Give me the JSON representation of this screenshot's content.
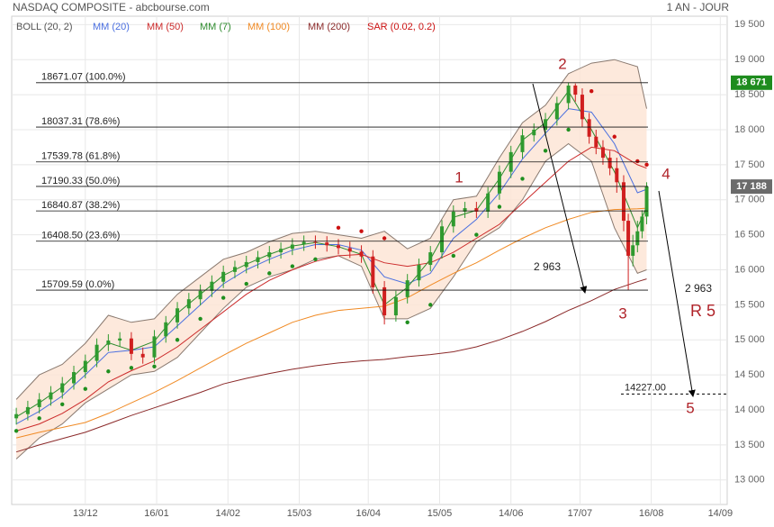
{
  "header": {
    "title": "NASDAQ COMPOSITE - abcbourse.com",
    "period": "1 AN - JOUR"
  },
  "chart_data": {
    "type": "candlestick",
    "x": [
      0,
      5,
      10,
      15,
      20,
      25,
      30,
      35,
      40,
      45,
      50,
      55,
      60,
      65,
      70,
      75,
      80,
      85,
      90,
      95,
      100,
      105,
      110,
      115,
      120,
      125,
      130,
      135,
      140,
      145,
      150,
      155,
      160,
      165,
      170,
      175,
      180,
      185,
      190,
      195,
      200,
      205,
      210,
      215,
      220,
      225,
      230,
      235,
      240,
      243,
      246,
      249,
      252,
      255,
      258,
      261,
      264,
      266,
      268,
      270,
      272,
      274
    ],
    "open": [
      13880,
      13940,
      14040,
      14150,
      14250,
      14380,
      14540,
      14700,
      14930,
      14990,
      15020,
      14800,
      14750,
      15050,
      15250,
      15450,
      15580,
      15700,
      15830,
      15970,
      16040,
      16110,
      16180,
      16250,
      16300,
      16360,
      16400,
      16390,
      16350,
      16310,
      16260,
      16190,
      15750,
      15350,
      15610,
      15850,
      16070,
      16250,
      16620,
      16830,
      16880,
      16830,
      17090,
      17400,
      17680,
      17920,
      18000,
      18150,
      18380,
      18630,
      18500,
      18150,
      17900,
      17750,
      17600,
      17450,
      17250,
      16700,
      16200,
      16350,
      16550,
      16760
    ],
    "high": [
      14030,
      14130,
      14240,
      14340,
      14470,
      14630,
      14790,
      15020,
      15080,
      15110,
      15110,
      14890,
      15140,
      15340,
      15540,
      15670,
      15790,
      15920,
      16060,
      16130,
      16200,
      16270,
      16340,
      16390,
      16450,
      16490,
      16490,
      16480,
      16440,
      16400,
      16350,
      16280,
      15840,
      15700,
      15940,
      16160,
      16340,
      16710,
      16920,
      16970,
      16970,
      17180,
      17490,
      17770,
      18010,
      18090,
      18240,
      18470,
      18671,
      18660,
      18590,
      18240,
      18000,
      17850,
      17700,
      17600,
      17350,
      16800,
      16500,
      16700,
      16850,
      17250
    ],
    "low": [
      13790,
      13850,
      13950,
      14060,
      14160,
      14290,
      14450,
      14610,
      14840,
      14900,
      14710,
      14660,
      14660,
      14960,
      15160,
      15360,
      15490,
      15610,
      15740,
      15880,
      15950,
      16020,
      16090,
      16160,
      16210,
      16270,
      16300,
      16260,
      16220,
      16170,
      16100,
      15660,
      15220,
      15260,
      15520,
      15760,
      15980,
      16160,
      16530,
      16740,
      16740,
      16740,
      17000,
      17310,
      17590,
      17830,
      17910,
      18060,
      18290,
      18400,
      18040,
      17800,
      17650,
      17500,
      17350,
      17100,
      16550,
      15710,
      16050,
      16250,
      16450,
      16650
    ],
    "close": [
      13940,
      14040,
      14150,
      14250,
      14380,
      14540,
      14700,
      14930,
      14990,
      15020,
      14800,
      14750,
      15050,
      15250,
      15450,
      15580,
      15700,
      15830,
      15970,
      16040,
      16110,
      16180,
      16250,
      16300,
      16360,
      16400,
      16390,
      16350,
      16310,
      16260,
      16190,
      15750,
      15350,
      15610,
      15850,
      16070,
      16250,
      16620,
      16830,
      16880,
      16830,
      17090,
      17400,
      17680,
      17920,
      18000,
      18150,
      18380,
      18630,
      18500,
      18150,
      17900,
      17750,
      17600,
      17450,
      17250,
      16700,
      16200,
      16350,
      16550,
      16760,
      17190
    ],
    "up_color": "#2f9a2f",
    "down_color": "#d01f1f",
    "xlim": [
      -2,
      309
    ],
    "xticks": [
      {
        "value": 30,
        "label": "13/12"
      },
      {
        "value": 61,
        "label": "16/01"
      },
      {
        "value": 92,
        "label": "14/02"
      },
      {
        "value": 123,
        "label": "15/03"
      },
      {
        "value": 153,
        "label": "16/04"
      },
      {
        "value": 184,
        "label": "15/05"
      },
      {
        "value": 215,
        "label": "14/06"
      },
      {
        "value": 245,
        "label": "17/07"
      },
      {
        "value": 276,
        "label": "16/08"
      },
      {
        "value": 306,
        "label": "14/09"
      }
    ],
    "ylim": [
      12650,
      19620
    ],
    "yticks": [
      {
        "value": 13000,
        "label": "13 000"
      },
      {
        "value": 13500,
        "label": "13 500"
      },
      {
        "value": 14000,
        "label": "14 000"
      },
      {
        "value": 14500,
        "label": "14 500"
      },
      {
        "value": 15000,
        "label": "15 000"
      },
      {
        "value": 15500,
        "label": "15 500"
      },
      {
        "value": 16000,
        "label": "16 000"
      },
      {
        "value": 16500,
        "label": "16 500"
      },
      {
        "value": 17000,
        "label": "17 000"
      },
      {
        "value": 17500,
        "label": "17 500"
      },
      {
        "value": 18000,
        "label": "18 000"
      },
      {
        "value": 18500,
        "label": "18 500"
      },
      {
        "value": 19000,
        "label": "19 000"
      },
      {
        "value": 19500,
        "label": "19 500"
      }
    ],
    "grid": true,
    "indicators": {
      "x": [
        0,
        10,
        20,
        30,
        40,
        50,
        60,
        70,
        80,
        90,
        100,
        110,
        120,
        130,
        140,
        150,
        160,
        170,
        180,
        190,
        200,
        210,
        220,
        230,
        240,
        250,
        260,
        270,
        274
      ],
      "series": [
        {
          "name": "BOLL (20, 2)",
          "color": "#555555",
          "line_color": "#8a7a70",
          "fill": "#fde3d3",
          "upper": [
            14150,
            14500,
            14650,
            14950,
            15350,
            15250,
            15300,
            15650,
            15900,
            16150,
            16250,
            16400,
            16520,
            16550,
            16500,
            16450,
            16550,
            16300,
            16450,
            17000,
            17050,
            17600,
            18100,
            18350,
            18800,
            18950,
            19000,
            18900,
            18300
          ],
          "lower": [
            13300,
            13600,
            13800,
            14100,
            14300,
            14500,
            14550,
            14750,
            15100,
            15450,
            15750,
            15900,
            16000,
            16150,
            16200,
            16050,
            15300,
            15300,
            15450,
            15900,
            16400,
            16600,
            17000,
            17550,
            17800,
            17550,
            16600,
            15950,
            16000
          ]
        },
        {
          "name": "MM (20)",
          "color": "#4a6fe0",
          "values": [
            13800,
            13980,
            14200,
            14500,
            14820,
            14850,
            14900,
            15200,
            15500,
            15800,
            16000,
            16150,
            16280,
            16360,
            16360,
            16280,
            15900,
            15800,
            15950,
            16450,
            16720,
            17100,
            17580,
            17950,
            18300,
            18250,
            17800,
            17100,
            17150
          ]
        },
        {
          "name": "MM (50)",
          "color": "#cc2b2b",
          "values": [
            13700,
            13800,
            13950,
            14150,
            14400,
            14560,
            14700,
            14900,
            15150,
            15400,
            15650,
            15850,
            16000,
            16120,
            16200,
            16220,
            16100,
            16050,
            16100,
            16250,
            16450,
            16650,
            16950,
            17250,
            17550,
            17750,
            17700,
            17500,
            17450
          ]
        },
        {
          "name": "MM (7)",
          "color": "#2e8b2e",
          "values": [
            13900,
            14100,
            14330,
            14640,
            14960,
            14850,
            14980,
            15380,
            15650,
            15920,
            16080,
            16220,
            16340,
            16390,
            16330,
            16220,
            15500,
            15750,
            16150,
            16750,
            16850,
            17300,
            17850,
            18100,
            18550,
            18000,
            17400,
            16600,
            16900
          ]
        },
        {
          "name": "MM (100)",
          "color": "#f08a24",
          "values": [
            13600,
            13680,
            13750,
            13820,
            13950,
            14100,
            14250,
            14420,
            14600,
            14780,
            14950,
            15100,
            15250,
            15350,
            15420,
            15450,
            15480,
            15600,
            15780,
            15950,
            16100,
            16280,
            16450,
            16600,
            16720,
            16820,
            16860,
            16870,
            16880
          ]
        },
        {
          "name": "MM (200)",
          "color": "#8b2a2a",
          "values": [
            13400,
            13500,
            13590,
            13680,
            13800,
            13920,
            14030,
            14140,
            14250,
            14370,
            14450,
            14520,
            14580,
            14630,
            14670,
            14700,
            14720,
            14760,
            14790,
            14830,
            14900,
            15000,
            15120,
            15260,
            15420,
            15560,
            15720,
            15830,
            15870
          ]
        },
        {
          "name": "SAR (0.02, 0.2)",
          "color": "#cc1111",
          "below_color": "#1f8f1f",
          "style": "dots",
          "values": [
            13700,
            13880,
            14080,
            14300,
            14550,
            14600,
            14620,
            15000,
            15300,
            15600,
            15800,
            15950,
            16050,
            16150,
            16600,
            16550,
            16450,
            15250,
            15500,
            16200,
            16500,
            16900,
            17300,
            17700,
            18000,
            18550,
            17900,
            17550,
            17500
          ]
        }
      ]
    },
    "fibonacci": {
      "values": [
        18671.07,
        18037.31,
        17539.78,
        17190.33,
        16840.87,
        16408.5,
        15709.59
      ],
      "value_labels": [
        "18671.07 (100.0%)",
        "18037.31 (78.6%)",
        "17539.78 (61.8%)",
        "17190.33 (50.0%)",
        "16840.87 (38.2%)",
        "16408.50 (23.6%)",
        "15709.59 (0.0%)"
      ]
    },
    "target": {
      "value": 14227,
      "label": "14227.00"
    },
    "price_tags": [
      {
        "value": 18671,
        "label": "18 671",
        "color": "#1e8c1e"
      },
      {
        "value": 17188,
        "label": "17 188",
        "color": "#6b6b6b"
      }
    ],
    "annotations": [
      "1",
      "2",
      "3",
      "4",
      "5",
      "R 5",
      "2 963",
      "2 963"
    ]
  }
}
